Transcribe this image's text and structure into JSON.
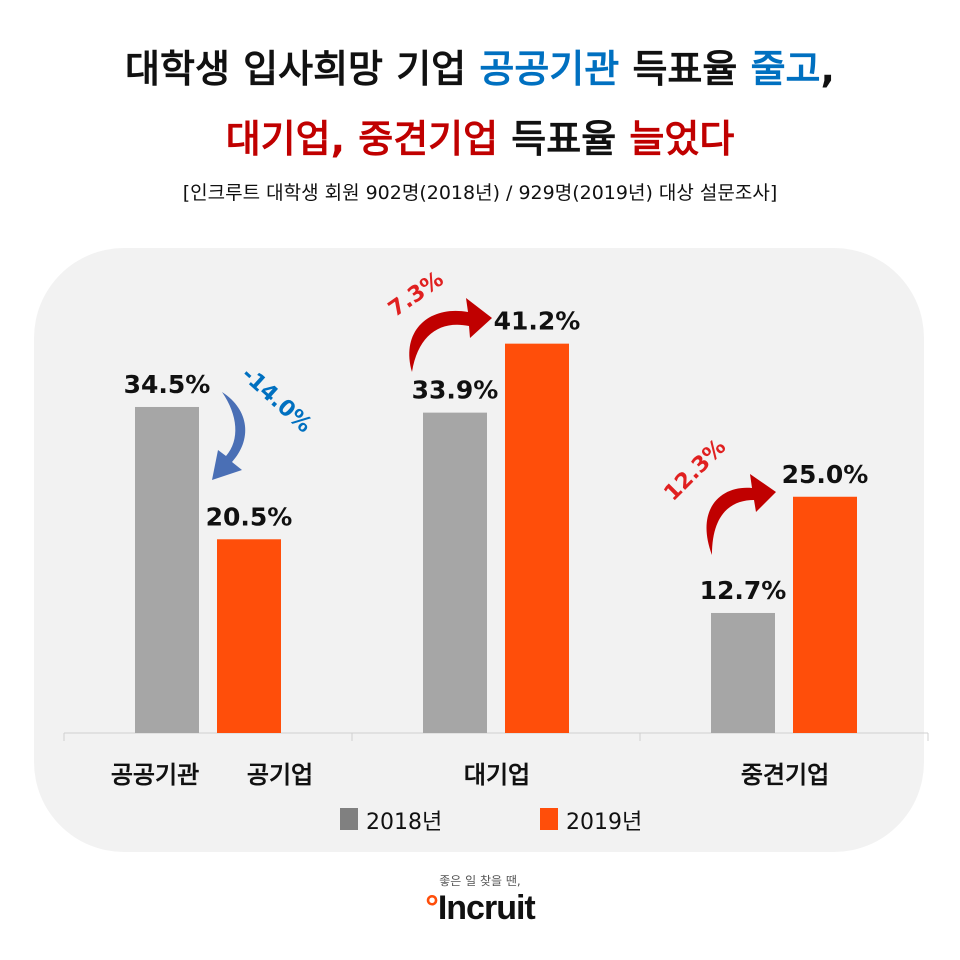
{
  "title": {
    "line1_a": "대학생 입사희망 기업 ",
    "line1_b": "공공기관",
    "line1_c": " 득표율 ",
    "line1_d": "줄고",
    ",": ",",
    "line2_a": "대기업, 중견기업",
    "line2_b": " 득표율 ",
    "line2_c": "늘었다",
    "subtitle": "[인크루트 대학생 회원 902명(2018년) / 929명(2019년) 대상 설문조사]"
  },
  "colors": {
    "blue": "#0070c0",
    "red": "#c00000",
    "series2018": "#a6a6a6",
    "series2019": "#ff4e0a",
    "down_arrow": "#4a6fb5",
    "up_arrow": "#c00000"
  },
  "chart_data": {
    "type": "bar",
    "categories": [
      "공공기관 공기업",
      "대기업",
      "중견기업"
    ],
    "category_labels": [
      [
        "공공기관",
        "공기업"
      ],
      [
        "대기업"
      ],
      [
        "중견기업"
      ]
    ],
    "series": [
      {
        "name": "2018년",
        "values": [
          34.5,
          33.9,
          12.7
        ],
        "labels": [
          "34.5%",
          "33.9%",
          "12.7%"
        ]
      },
      {
        "name": "2019년",
        "values": [
          20.5,
          41.2,
          25.0
        ],
        "labels": [
          "20.5%",
          "41.2%",
          "25.0%"
        ]
      }
    ],
    "annotations": [
      "-14.0%",
      "7.3%",
      "12.3%"
    ],
    "legend": "bottom",
    "grid": false,
    "ylim": [
      0,
      45
    ]
  },
  "logo": {
    "tagline": "좋은 일 찾을 땐,",
    "brand": "Incruit"
  }
}
